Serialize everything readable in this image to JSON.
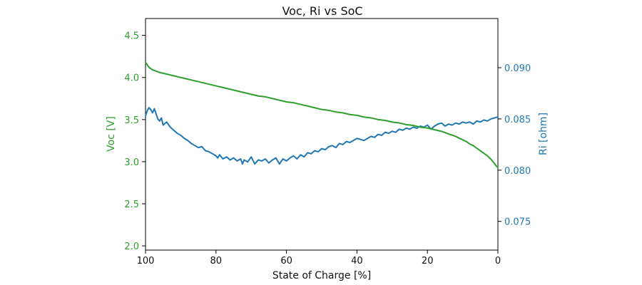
{
  "chart_data": {
    "type": "line",
    "title": "Voc, Ri vs SoC",
    "xlabel": "State of Charge [%]",
    "xlim": [
      100,
      0
    ],
    "xticks": [
      100,
      80,
      60,
      40,
      20,
      0
    ],
    "left_axis": {
      "label": "Voc [V]",
      "color": "#2ca02c",
      "ylim": [
        1.95,
        4.7
      ],
      "ticks": [
        2.0,
        2.5,
        3.0,
        3.5,
        4.0,
        4.5
      ],
      "tick_labels": [
        "2.0",
        "2.5",
        "3.0",
        "3.5",
        "4.0",
        "4.5"
      ]
    },
    "right_axis": {
      "label": "Ri [ohm]",
      "color": "#1f77b4",
      "ylim": [
        0.0722,
        0.0948
      ],
      "ticks": [
        0.075,
        0.08,
        0.085,
        0.09
      ],
      "tick_labels": [
        "0.075",
        "0.080",
        "0.085",
        "0.090"
      ]
    },
    "series": [
      {
        "name": "Voc",
        "axis": "left",
        "color": "#2ca02c",
        "x": [
          100,
          99,
          98,
          96,
          94,
          92,
          90,
          88,
          86,
          84,
          82,
          80,
          78,
          76,
          74,
          72,
          70,
          68,
          66,
          64,
          62,
          60,
          58,
          56,
          54,
          52,
          50,
          48,
          46,
          44,
          42,
          40,
          38,
          36,
          34,
          32,
          30,
          28,
          26,
          24,
          22,
          20,
          18,
          16,
          14,
          12,
          10,
          9,
          8,
          7,
          6,
          5,
          4,
          3,
          2,
          1,
          0.5,
          0
        ],
        "y": [
          4.18,
          4.12,
          4.09,
          4.06,
          4.04,
          4.02,
          4.0,
          3.98,
          3.96,
          3.94,
          3.92,
          3.9,
          3.88,
          3.86,
          3.84,
          3.82,
          3.8,
          3.78,
          3.77,
          3.75,
          3.73,
          3.71,
          3.7,
          3.68,
          3.66,
          3.64,
          3.62,
          3.61,
          3.59,
          3.58,
          3.56,
          3.55,
          3.53,
          3.52,
          3.5,
          3.49,
          3.47,
          3.46,
          3.44,
          3.43,
          3.41,
          3.4,
          3.38,
          3.36,
          3.33,
          3.3,
          3.26,
          3.24,
          3.21,
          3.19,
          3.16,
          3.13,
          3.1,
          3.07,
          3.03,
          2.98,
          2.95,
          2.93
        ]
      },
      {
        "name": "Ri",
        "axis": "right",
        "color": "#1f77b4",
        "x": [
          100,
          99.5,
          99,
          98.5,
          98,
          97.5,
          97,
          96.5,
          96,
          95.5,
          95,
          94,
          93,
          92,
          91,
          90,
          89,
          88,
          87,
          86,
          85,
          84,
          83,
          82,
          81,
          80,
          79.5,
          79,
          78,
          77,
          76,
          75,
          74,
          73,
          72.5,
          72,
          71,
          70,
          69,
          68,
          67,
          66,
          65,
          64,
          63,
          62,
          61,
          60,
          59,
          58,
          57,
          56,
          55,
          54,
          53,
          52,
          51,
          50,
          49,
          48,
          47,
          46,
          45,
          44,
          43,
          42,
          41,
          40,
          39,
          38,
          37,
          36,
          35,
          34,
          33,
          32,
          31,
          30,
          29,
          28,
          27,
          26,
          25,
          24,
          23,
          22,
          21,
          20,
          19,
          18,
          17,
          16,
          15,
          14,
          13,
          12,
          11,
          10,
          9,
          8,
          7,
          6,
          5,
          4,
          3,
          2,
          1,
          0
        ],
        "y": [
          0.0853,
          0.0858,
          0.0861,
          0.0859,
          0.0856,
          0.086,
          0.0855,
          0.085,
          0.0848,
          0.0851,
          0.0844,
          0.0847,
          0.0842,
          0.0839,
          0.0836,
          0.0834,
          0.0831,
          0.0829,
          0.0826,
          0.0824,
          0.0822,
          0.0823,
          0.0819,
          0.0818,
          0.0816,
          0.0814,
          0.0812,
          0.0815,
          0.0811,
          0.0813,
          0.081,
          0.0812,
          0.0809,
          0.0811,
          0.0806,
          0.081,
          0.0808,
          0.0813,
          0.0806,
          0.081,
          0.0809,
          0.0811,
          0.0807,
          0.081,
          0.0812,
          0.0806,
          0.0811,
          0.0809,
          0.0812,
          0.0814,
          0.0811,
          0.0815,
          0.0813,
          0.0817,
          0.0816,
          0.0819,
          0.0818,
          0.0821,
          0.082,
          0.0823,
          0.0824,
          0.0822,
          0.0826,
          0.0825,
          0.0828,
          0.0827,
          0.0829,
          0.0831,
          0.083,
          0.0829,
          0.0831,
          0.0833,
          0.0832,
          0.0835,
          0.0834,
          0.0837,
          0.0836,
          0.0838,
          0.0837,
          0.084,
          0.0839,
          0.0841,
          0.084,
          0.0842,
          0.0841,
          0.0843,
          0.0842,
          0.0844,
          0.084,
          0.0843,
          0.0845,
          0.0846,
          0.0843,
          0.0845,
          0.0844,
          0.0846,
          0.0845,
          0.0847,
          0.0846,
          0.0847,
          0.0845,
          0.0848,
          0.0847,
          0.0849,
          0.0848,
          0.085,
          0.0851,
          0.0852
        ]
      }
    ]
  }
}
